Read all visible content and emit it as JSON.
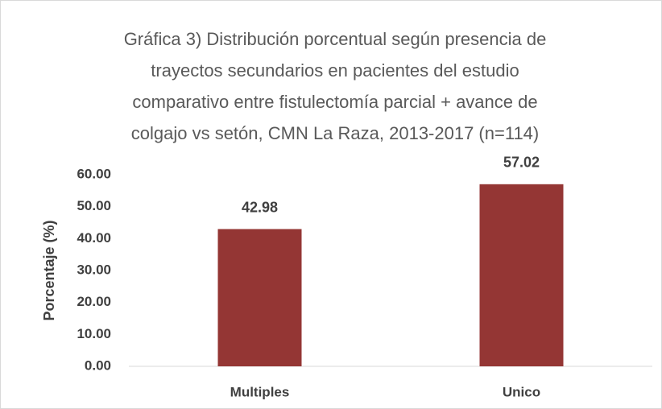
{
  "chart_data": {
    "type": "bar",
    "title": [
      "Gráfica 3) Distribución porcentual según presencia de",
      "trayectos secundarios en pacientes del estudio",
      "comparativo entre fistulectomía parcial + avance de",
      "colgajo vs setón, CMN La Raza, 2013-2017 (n=114)"
    ],
    "y_label": "Porcentaje (%)",
    "categories": [
      "Multiples",
      "Unico"
    ],
    "values": [
      42.98,
      57.02
    ],
    "color": "#943634",
    "ylim": [
      0,
      60
    ],
    "yticks": [
      {
        "value": 0,
        "label": "0.00"
      },
      {
        "value": 10,
        "label": "10.00"
      },
      {
        "value": 20,
        "label": "20.00"
      },
      {
        "value": 30,
        "label": "30.00"
      },
      {
        "value": 40,
        "label": "40.00"
      },
      {
        "value": 50,
        "label": "50.00"
      },
      {
        "value": 60,
        "label": "60.00"
      }
    ],
    "grid": false
  }
}
